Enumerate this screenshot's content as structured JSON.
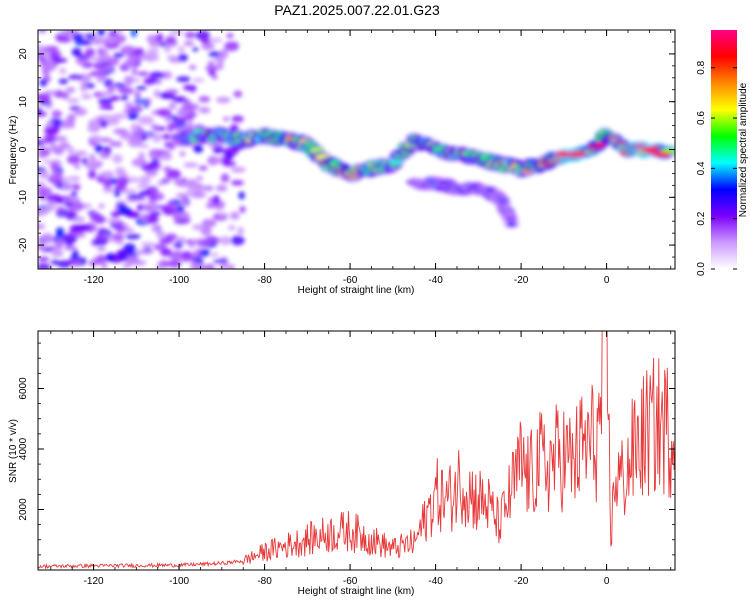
{
  "title": "PAZ1.2025.007.22.01.G23",
  "spectrogram": {
    "xlabel": "Height of straight line (km)",
    "ylabel": "Frequency (Hz)",
    "xlim": [
      -133,
      16
    ],
    "ylim": [
      -25,
      25
    ],
    "xticks": [
      "-120",
      "-100",
      "-80",
      "-60",
      "-40",
      "-20",
      "0"
    ],
    "yticks": [
      "20",
      "10",
      "0",
      "-10",
      "-20"
    ],
    "colorbar": {
      "label": "Normalized spectral amplitude",
      "ticks": [
        "0.0",
        "0.2",
        "0.4",
        "0.6",
        "0.8"
      ],
      "range": [
        0,
        0.95
      ],
      "colors": [
        "#ffffff",
        "#cc99ff",
        "#7a00ff",
        "#0000ff",
        "#00ffff",
        "#00ff00",
        "#ffff00",
        "#ff8800",
        "#ff0000",
        "#ff0088"
      ]
    }
  },
  "chart_data": [
    {
      "type": "heatmap",
      "title": "PAZ1.2025.007.22.01.G23",
      "xlabel": "Height of straight line (km)",
      "ylabel": "Frequency (Hz)",
      "xlim": [
        -133,
        16
      ],
      "ylim": [
        -25,
        25
      ],
      "colorbar_label": "Normalized spectral amplitude",
      "colorbar_range": [
        0,
        0.95
      ],
      "ridge": {
        "x": [
          -100,
          -95,
          -90,
          -85,
          -80,
          -75,
          -70,
          -65,
          -60,
          -55,
          -50,
          -45,
          -40,
          -35,
          -30,
          -25,
          -20,
          -15,
          -10,
          -5,
          0,
          5,
          10,
          15
        ],
        "freq": [
          2,
          3,
          3,
          2,
          3,
          2,
          1,
          -3,
          -5,
          -4,
          -3,
          2,
          0,
          -1,
          -2,
          -3,
          -4,
          -3,
          -1,
          -1,
          3,
          0,
          0,
          -1
        ],
        "amplitude": [
          0.3,
          0.45,
          0.5,
          0.5,
          0.55,
          0.6,
          0.55,
          0.6,
          0.6,
          0.55,
          0.45,
          0.5,
          0.55,
          0.5,
          0.5,
          0.55,
          0.55,
          0.6,
          0.9,
          0.85,
          0.7,
          0.85,
          0.9,
          0.75
        ]
      },
      "secondary_branch": {
        "x": [
          -45,
          -40,
          -35,
          -30,
          -25,
          -22
        ],
        "freq": [
          -7,
          -7,
          -8,
          -8,
          -10,
          -16
        ],
        "amplitude": [
          0.25,
          0.3,
          0.3,
          0.3,
          0.25,
          0.2
        ]
      },
      "noise_region_x": [
        -133,
        -85
      ]
    },
    {
      "type": "line",
      "xlabel": "Height of straight line (km)",
      "ylabel": "SNR (10 * v/v)",
      "xlim": [
        -133,
        16
      ],
      "ylim": [
        0,
        7900
      ],
      "xticks": [
        "-120",
        "-100",
        "-80",
        "-60",
        "-40",
        "-20",
        "0"
      ],
      "yticks": [
        "2000",
        "4000",
        "6000"
      ],
      "color": "#e8393a",
      "series": [
        {
          "x": [
            -133,
            -120,
            -110,
            -100,
            -90,
            -85,
            -80,
            -75,
            -70,
            -65,
            -60,
            -55,
            -50,
            -45,
            -42,
            -40,
            -37,
            -34,
            -31,
            -28,
            -25,
            -22,
            -20,
            -18,
            -16,
            -14,
            -12,
            -10,
            -8,
            -6,
            -4,
            -2,
            0,
            1,
            2,
            4,
            6,
            8,
            10,
            12,
            14,
            16
          ],
          "y": [
            120,
            140,
            150,
            160,
            220,
            300,
            600,
            800,
            1000,
            1200,
            1300,
            1000,
            700,
            900,
            1800,
            2500,
            2300,
            3000,
            2400,
            2200,
            1500,
            2700,
            3500,
            3000,
            3600,
            3400,
            3700,
            3800,
            3500,
            4000,
            4200,
            4300,
            7800,
            1100,
            3100,
            3000,
            3800,
            4300,
            4600,
            4800,
            4700,
            4400
          ]
        }
      ]
    }
  ]
}
